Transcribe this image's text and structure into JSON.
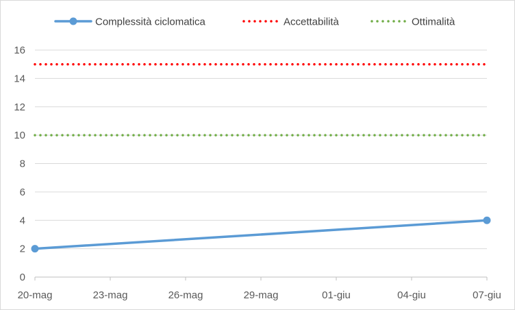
{
  "chart_data": {
    "type": "line",
    "title": "",
    "xlabel": "",
    "ylabel": "",
    "x_ticks": [
      "20-mag",
      "23-mag",
      "26-mag",
      "29-mag",
      "01-giu",
      "04-giu",
      "07-giu"
    ],
    "ylim": [
      0,
      16
    ],
    "y_ticks": [
      0,
      2,
      4,
      6,
      8,
      10,
      12,
      14,
      16
    ],
    "grid": true,
    "legend_position": "top",
    "series": [
      {
        "name": "Complessità ciclomatica",
        "style": "solid-with-markers",
        "color": "#5b9bd5",
        "x": [
          "20-mag",
          "07-giu"
        ],
        "values": [
          2,
          4
        ]
      },
      {
        "name": "Accettabilità",
        "style": "dotted",
        "color": "#ff0000",
        "x": [
          "20-mag",
          "07-giu"
        ],
        "values": [
          15,
          15
        ]
      },
      {
        "name": "Ottimalità",
        "style": "dotted",
        "color": "#70ad47",
        "x": [
          "20-mag",
          "07-giu"
        ],
        "values": [
          10,
          10
        ]
      }
    ]
  }
}
